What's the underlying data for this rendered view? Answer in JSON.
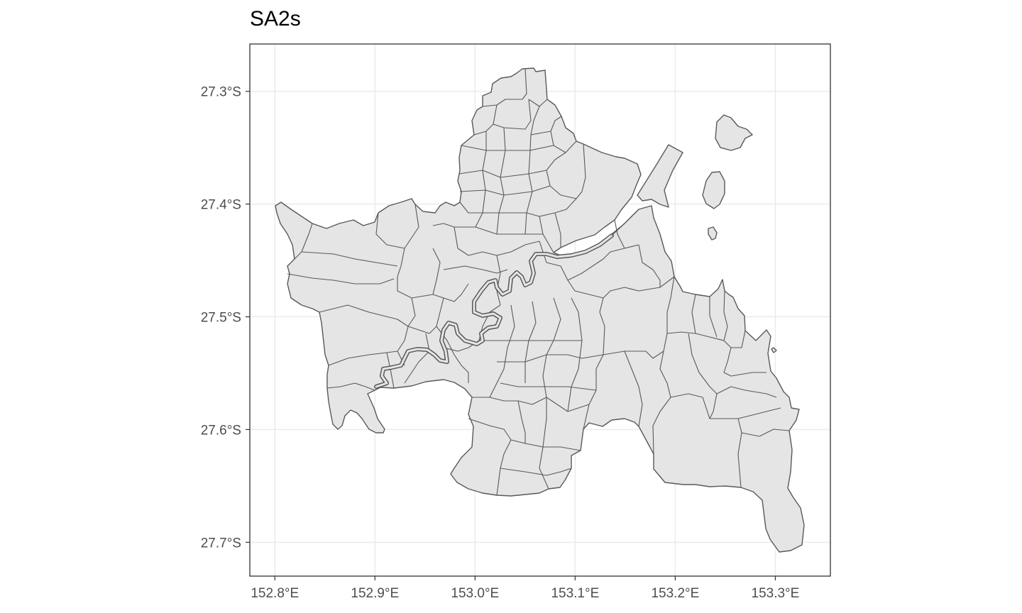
{
  "title": "SA2s",
  "colors": {
    "panel_background": "#ffffff",
    "grid": "#ebebeb",
    "region_fill": "#e5e5e5",
    "region_border": "#595959",
    "panel_border": "#333333",
    "tick_text": "#4d4d4d"
  },
  "axes": {
    "x_ticks": [
      {
        "value": 152.8,
        "label": "152.8°E"
      },
      {
        "value": 152.9,
        "label": "152.9°E"
      },
      {
        "value": 153.0,
        "label": "153.0°E"
      },
      {
        "value": 153.1,
        "label": "153.1°E"
      },
      {
        "value": 153.2,
        "label": "153.2°E"
      },
      {
        "value": 153.3,
        "label": "153.3°E"
      }
    ],
    "y_ticks": [
      {
        "value": -27.3,
        "label": "27.3°S"
      },
      {
        "value": -27.4,
        "label": "27.4°S"
      },
      {
        "value": -27.5,
        "label": "27.5°S"
      },
      {
        "value": -27.6,
        "label": "27.6°S"
      },
      {
        "value": -27.7,
        "label": "27.7°S"
      }
    ],
    "x_range": [
      152.775,
      153.355
    ],
    "y_range": [
      -27.73,
      -27.258
    ]
  },
  "map": {
    "region_type": "SA2",
    "grid": true
  }
}
